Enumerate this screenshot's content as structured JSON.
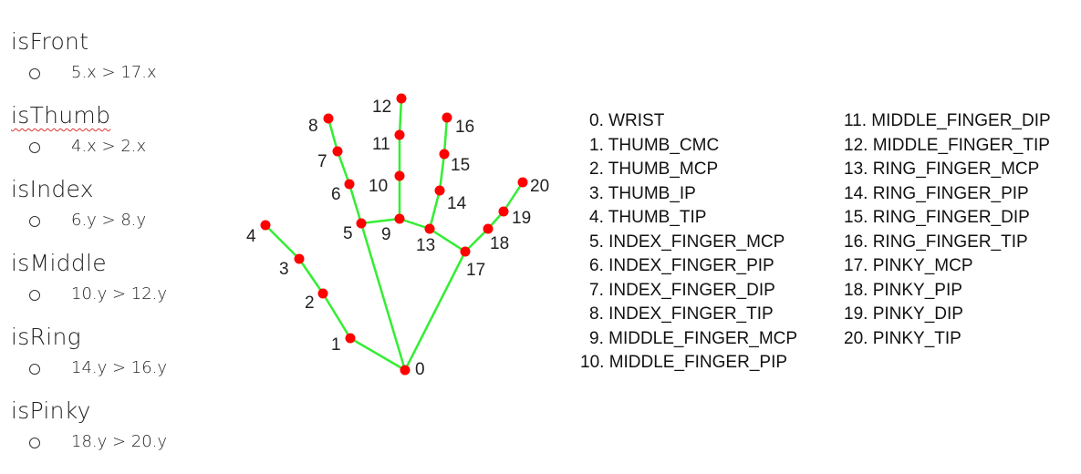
{
  "rules": [
    {
      "name": "isFront",
      "condition": "5.x > 17.x",
      "spellcheck": false
    },
    {
      "name": "isThumb",
      "condition": "4.x > 2.x",
      "spellcheck": true
    },
    {
      "name": "isIndex",
      "condition": "6.y > 8.y",
      "spellcheck": false
    },
    {
      "name": "isMiddle",
      "condition": "10.y > 12.y",
      "spellcheck": false
    },
    {
      "name": "isRing",
      "condition": "14.y > 16.y",
      "spellcheck": false
    },
    {
      "name": "isPinky",
      "condition": "18.y > 20.y",
      "spellcheck": false
    }
  ],
  "landmarks": [
    "0. WRIST",
    "1. THUMB_CMC",
    "2. THUMB_MCP",
    "3. THUMB_IP",
    "4. THUMB_TIP",
    "5. INDEX_FINGER_MCP",
    "6. INDEX_FINGER_PIP",
    "7. INDEX_FINGER_DIP",
    "8. INDEX_FINGER_TIP",
    "9. MIDDLE_FINGER_MCP",
    "10. MIDDLE_FINGER_PIP",
    "11. MIDDLE_FINGER_DIP",
    "12. MIDDLE_FINGER_TIP",
    "13. RING_FINGER_MCP",
    "14. RING_FINGER_PIP",
    "15. RING_FINGER_DIP",
    "16. RING_FINGER_TIP",
    "17. PINKY_MCP",
    "18. PINKY_PIP",
    "19. PINKY_DIP",
    "20. PINKY_TIP"
  ],
  "diagram": {
    "point_labels": [
      "0",
      "1",
      "2",
      "3",
      "4",
      "5",
      "6",
      "7",
      "8",
      "9",
      "10",
      "11",
      "12",
      "13",
      "14",
      "15",
      "16",
      "17",
      "18",
      "19",
      "20"
    ],
    "colors": {
      "joint": "#ff0000",
      "bone": "#33ee33",
      "text": "#222222"
    }
  }
}
